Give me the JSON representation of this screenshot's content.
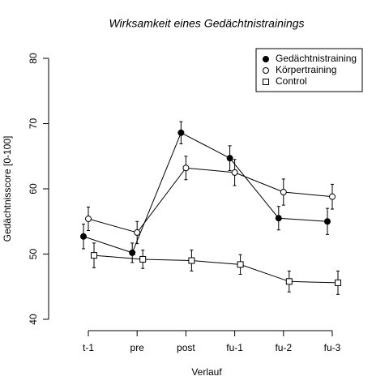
{
  "chart_data": {
    "type": "line",
    "title": "Wirksamkeit eines Gedächtnistrainings",
    "x_label": "Verlauf",
    "y_label": "Gedächtnisscore [0-100]",
    "categories": [
      "t-1",
      "pre",
      "post",
      "fu-1",
      "fu-2",
      "fu-3"
    ],
    "ylim": [
      40,
      80
    ],
    "yticks": [
      40,
      50,
      60,
      70,
      80
    ],
    "legend": "top-right",
    "series": [
      {
        "name": "Gedächtnistraining",
        "color": "#000000",
        "marker": "filled-circle",
        "values": [
          52.7,
          50.2,
          68.6,
          64.7,
          55.5,
          55.0
        ],
        "errors": [
          1.9,
          1.5,
          1.7,
          1.9,
          1.8,
          2.0
        ]
      },
      {
        "name": "Körpertraining",
        "color": "#000000",
        "marker": "open-circle",
        "values": [
          55.4,
          53.3,
          63.2,
          62.5,
          59.5,
          58.8
        ],
        "errors": [
          1.8,
          1.7,
          1.8,
          2.0,
          2.0,
          1.9
        ]
      },
      {
        "name": "Control",
        "color": "#000000",
        "marker": "open-square",
        "values": [
          49.8,
          49.2,
          49.0,
          48.4,
          45.8,
          45.6
        ],
        "errors": [
          1.9,
          1.4,
          1.6,
          1.5,
          1.6,
          1.8
        ]
      }
    ]
  }
}
